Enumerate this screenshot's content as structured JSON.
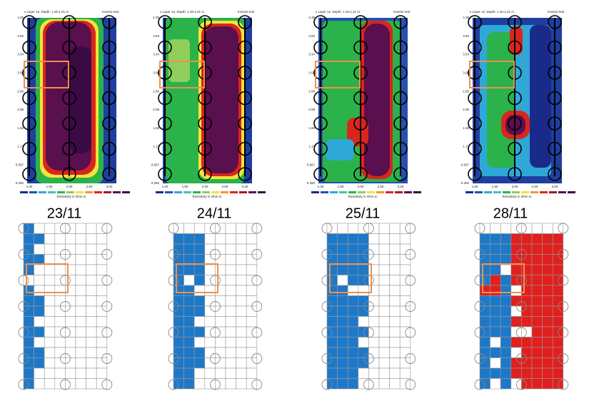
{
  "panels": [
    {
      "date": "23/11"
    },
    {
      "date": "24/11"
    },
    {
      "date": "25/11"
    },
    {
      "date": "28/11"
    }
  ],
  "map_header": "x Layer 12, Depth: 1.16-1.21 m",
  "map_tag": "Inverse test",
  "map_y_labels": [
    "4.35",
    "3.83",
    "3.34",
    "3.08",
    "2.56",
    "2.08",
    "1.66",
    "1.17",
    "0.667",
    "0.250"
  ],
  "map_x_labels": [
    "1.00",
    "1.50",
    "2.00",
    "2.50",
    "3.00"
  ],
  "legend_caption": "Resistivity in Ohm.m"
}
